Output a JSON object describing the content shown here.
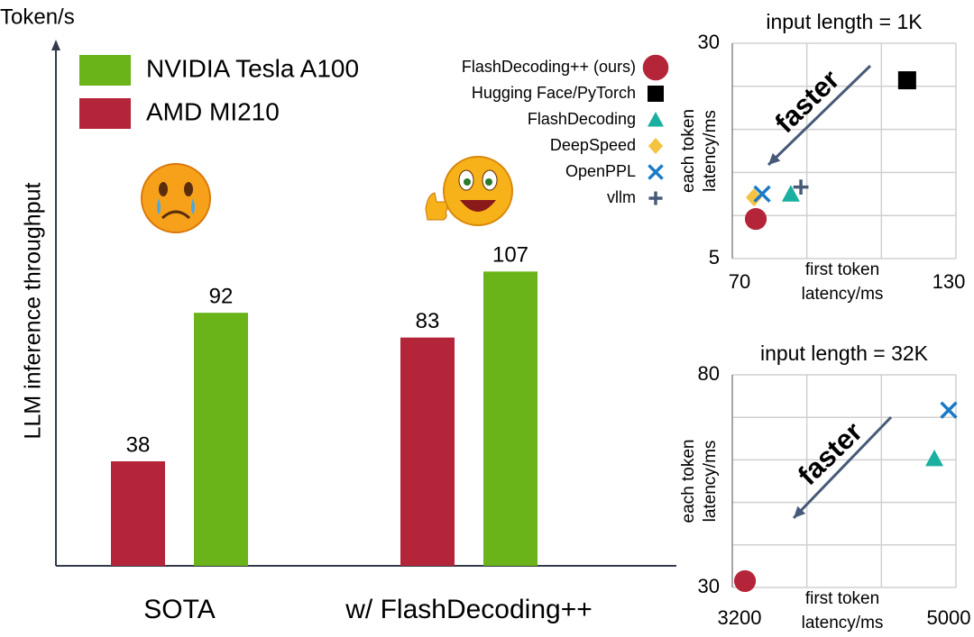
{
  "chart_data": [
    {
      "type": "bar",
      "unit": "Token/s",
      "y_label": "LLM inference throughput",
      "categories": [
        "SOTA",
        "w/ FlashDecoding++"
      ],
      "series": [
        {
          "name": "NVIDIA Tesla A100",
          "color": "#6ab41a",
          "values": [
            92,
            107
          ]
        },
        {
          "name": "AMD MI210",
          "color": "#b5253a",
          "values": [
            38,
            83
          ]
        }
      ],
      "ylim": [
        0,
        190
      ]
    },
    {
      "type": "scatter",
      "title": "input length = 1K",
      "annotation": "faster",
      "x_label": [
        "first token",
        "latency/ms"
      ],
      "y_label": [
        "each token",
        "latency/ms"
      ],
      "xlim": [
        70,
        130
      ],
      "xticks": [
        70,
        130
      ],
      "xgrid": [
        90,
        110
      ],
      "ylim": [
        5,
        30
      ],
      "yticks": [
        5,
        30
      ],
      "ygrid": [
        10,
        15,
        20,
        25
      ],
      "legend": true,
      "series": [
        {
          "name": "FlashDecoding++ (ours)",
          "color": "#b5253a",
          "marker": "circle",
          "x": [
            76.3
          ],
          "values": [
            9.6
          ]
        },
        {
          "name": "Hugging Face/PyTorch",
          "color": "#000000",
          "marker": "square",
          "x": [
            116.9
          ],
          "values": [
            25.7
          ]
        },
        {
          "name": "FlashDecoding",
          "color": "#1aafa0",
          "marker": "triangle",
          "x": [
            85.7
          ],
          "values": [
            12.5
          ]
        },
        {
          "name": "DeepSpeed",
          "color": "#f5c342",
          "marker": "diamond",
          "x": [
            75.8
          ],
          "values": [
            12.1
          ]
        },
        {
          "name": "OpenPPL",
          "color": "#1a7ac8",
          "marker": "x",
          "x": [
            78
          ],
          "values": [
            12.5
          ]
        },
        {
          "name": "vllm",
          "color": "#475a78",
          "marker": "plus",
          "x": [
            88.4
          ],
          "values": [
            13.3
          ]
        }
      ]
    },
    {
      "type": "scatter",
      "title": "input length = 32K",
      "annotation": "faster",
      "x_label": [
        "first token",
        "latency/ms"
      ],
      "y_label": [
        "each token",
        "latency/ms"
      ],
      "xlim": [
        3200,
        5000
      ],
      "xticks": [
        3200,
        5000
      ],
      "xgrid": [
        3800,
        4400
      ],
      "ylim": [
        30,
        80
      ],
      "yticks": [
        30,
        80
      ],
      "ygrid": [
        40,
        50,
        60,
        70
      ],
      "legend": false,
      "series": [
        {
          "name": "FlashDecoding++ (ours)",
          "color": "#b5253a",
          "marker": "circle",
          "x": [
            3302
          ],
          "values": [
            31.5
          ]
        },
        {
          "name": "FlashDecoding",
          "color": "#1aafa0",
          "marker": "triangle",
          "x": [
            4826
          ],
          "values": [
            60.3
          ]
        },
        {
          "name": "OpenPPL",
          "color": "#1a7ac8",
          "marker": "x",
          "x": [
            4942
          ],
          "values": [
            71.7
          ]
        }
      ]
    }
  ]
}
